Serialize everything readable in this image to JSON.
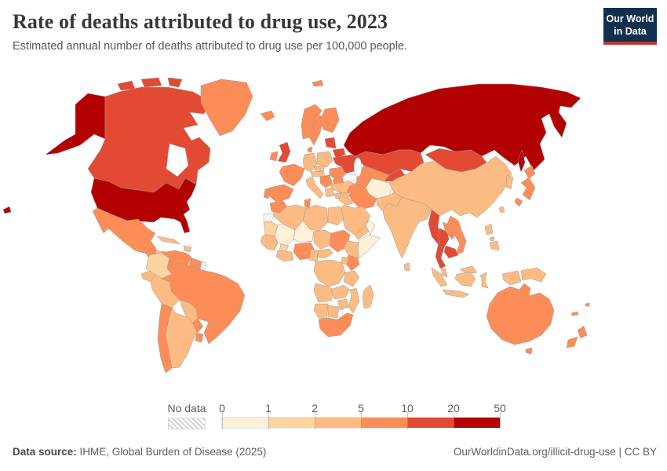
{
  "header": {
    "title": "Rate of deaths attributed to drug use, 2023",
    "subtitle": "Estimated annual number of deaths attributed to drug use per 100,000 people.",
    "logo_line1": "Our World",
    "logo_line2": "in Data",
    "logo_bg": "#12304e",
    "logo_accent": "#c0362c"
  },
  "legend": {
    "no_data_label": "No data",
    "tick_labels": [
      "0",
      "1",
      "2",
      "5",
      "10",
      "20",
      "50"
    ],
    "bins": [
      {
        "range": "0-1",
        "color": "#fef0d9"
      },
      {
        "range": "1-2",
        "color": "#fdd49e"
      },
      {
        "range": "2-5",
        "color": "#fdbb84"
      },
      {
        "range": "5-10",
        "color": "#fc8d59"
      },
      {
        "range": "10-20",
        "color": "#e34a33"
      },
      {
        "range": "20-50",
        "color": "#b30000"
      }
    ]
  },
  "footer": {
    "source_prefix": "Data source:",
    "source_text": "IHME, Global Burden of Disease (2025)",
    "credit_text": "OurWorldinData.org/illicit-drug-use | CC BY"
  },
  "chart_data": {
    "type": "choropleth",
    "title": "Rate of deaths attributed to drug use",
    "year": 2023,
    "unit": "estimated annual deaths attributed to drug use per 100,000 people",
    "scale_type": "binned",
    "bin_edges": [
      0,
      1,
      2,
      5,
      10,
      20,
      50
    ],
    "no_data_style": "hatched",
    "regions": {
      "united-states": "20-50",
      "canada": "10-20",
      "greenland": "5-10",
      "mexico": "5-10",
      "guatemala": "5-10",
      "honduras": "2-5",
      "nicaragua": "2-5",
      "costa-rica": "5-10",
      "panama": "5-10",
      "cuba": "2-5",
      "haiti-dominican-republic": "2-5",
      "colombia": "1-2",
      "venezuela": "5-10",
      "guyana": "5-10",
      "suriname": "5-10",
      "french-guiana": "no-data",
      "ecuador": "2-5",
      "peru": "2-5",
      "brazil": "5-10",
      "bolivia": "2-5",
      "paraguay": "5-10",
      "chile": "5-10",
      "argentina": "2-5",
      "uruguay": "5-10",
      "iceland": "5-10",
      "norway": "5-10",
      "sweden": "5-10",
      "finland": "5-10",
      "denmark": "5-10",
      "united-kingdom": "10-20",
      "ireland": "5-10",
      "france": "5-10",
      "spain": "5-10",
      "portugal": "5-10",
      "germany": "2-5",
      "poland": "2-5",
      "czechia-slovakia": "2-5",
      "austria-hungary": "2-5",
      "italy": "2-5",
      "serbia-balkans": "5-10",
      "greece": "2-5",
      "romania": "5-10",
      "bulgaria": "5-10",
      "ukraine": "10-20",
      "belarus": "10-20",
      "baltic-states": "10-20",
      "russia": "20-50",
      "turkey": "2-5",
      "syria": "2-5",
      "iraq": "2-5",
      "saudi-arabia": "2-5",
      "yemen": "2-5",
      "oman": "0-1",
      "iran": "5-10",
      "afghanistan": "0-1",
      "kazakhstan": "10-20",
      "uzbekistan": "5-10",
      "turkmenistan": "5-10",
      "kyrgyzstan-tajikistan": "10-20",
      "pakistan": "2-5",
      "india": "2-5",
      "sri-lanka": "2-5",
      "china": "2-5",
      "mongolia": "10-20",
      "korea": "2-5",
      "japan": "5-10",
      "taiwan": "2-5",
      "myanmar": "10-20",
      "thailand": "10-20",
      "laos": "5-10",
      "vietnam": "5-10",
      "cambodia": "10-20",
      "malaysia": "2-5",
      "indonesia": "2-5",
      "philippines": "2-5",
      "papua-new-guinea": "2-5",
      "australia": "5-10",
      "new-zealand": "5-10",
      "fiji": "5-10",
      "new-caledonia": "5-10",
      "morocco": "5-10",
      "western-sahara": "no-data",
      "algeria": "2-5",
      "tunisia": "5-10",
      "libya": "2-5",
      "egypt": "2-5",
      "mauritania": "1-2",
      "mali": "0-1",
      "niger": "0-1",
      "chad": "2-5",
      "sudan": "5-10",
      "senegal-guinea": "2-5",
      "burkina-faso": "1-2",
      "ghana-ivory-coast": "2-5",
      "nigeria": "5-10",
      "cameroon-gabon": "2-5",
      "central-african-republic": "2-5",
      "ethiopia": "2-5",
      "somalia": "0-1",
      "kenya": "5-10",
      "uganda": "2-5",
      "dr-congo": "2-5",
      "tanzania": "2-5",
      "angola": "2-5",
      "zambia": "2-5",
      "mozambique": "2-5",
      "zimbabwe": "2-5",
      "namibia": "2-5",
      "botswana": "2-5",
      "south-africa": "5-10",
      "madagascar": "2-5"
    }
  }
}
